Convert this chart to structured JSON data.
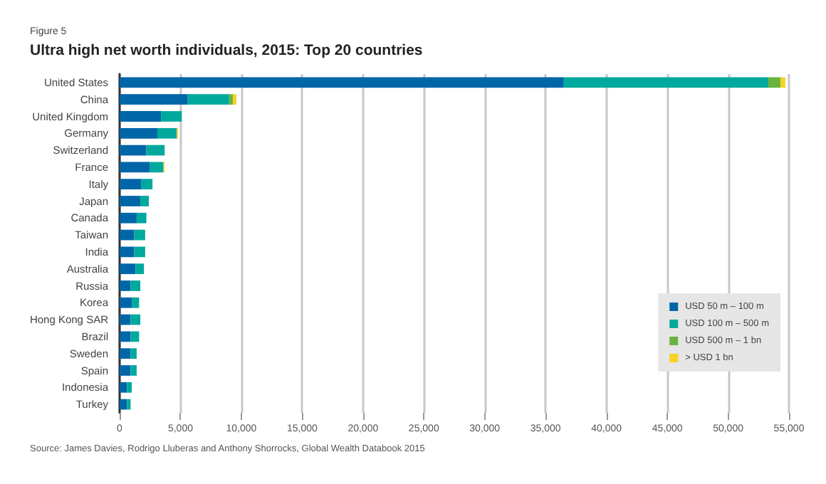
{
  "chart_data": {
    "type": "bar",
    "orientation": "horizontal",
    "stacked": true,
    "subtitle": "Figure 5",
    "title": "Ultra high net worth individuals, 2015: Top 20 countries",
    "annotations": [
      "Source: James Davies, Rodrigo Lluberas and Anthony Shorrocks, Global Wealth Databook 2015"
    ],
    "categories": [
      "United States",
      "China",
      "United Kingdom",
      "Germany",
      "Switzerland",
      "France",
      "Italy",
      "Japan",
      "Canada",
      "Taiwan",
      "India",
      "Australia",
      "Russia",
      "Korea",
      "Hong Kong SAR",
      "Brazil",
      "Sweden",
      "Spain",
      "Indonesia",
      "Turkey"
    ],
    "series": [
      {
        "name": "USD 50 m – 100 m",
        "color": "#0066a8",
        "values": [
          36500,
          5600,
          3400,
          3100,
          2200,
          2500,
          1800,
          1700,
          1400,
          1200,
          1200,
          1300,
          900,
          1000,
          900,
          900,
          900,
          900,
          600,
          600
        ]
      },
      {
        "name": "USD 100 m – 500 m",
        "color": "#00a99d",
        "values": [
          16800,
          3400,
          1700,
          1600,
          1500,
          1100,
          900,
          700,
          800,
          900,
          900,
          700,
          800,
          600,
          800,
          700,
          500,
          500,
          400,
          300
        ]
      },
      {
        "name": "USD 500 m – 1 bn",
        "color": "#6ab43e",
        "values": [
          1000,
          300,
          null,
          null,
          null,
          null,
          null,
          null,
          null,
          null,
          null,
          null,
          null,
          null,
          null,
          null,
          null,
          null,
          null,
          null
        ]
      },
      {
        "name": "> USD 1 bn",
        "color": "#f5d327",
        "values": [
          400,
          300,
          null,
          100,
          null,
          100,
          null,
          null,
          null,
          null,
          null,
          null,
          null,
          null,
          null,
          null,
          null,
          null,
          null,
          null
        ]
      }
    ],
    "xlim": [
      0,
      55000
    ],
    "xticks": [
      0,
      {
        "value": 5000,
        "label": "5,000"
      },
      {
        "value": 10000,
        "label": "10,000"
      },
      {
        "value": 15000,
        "label": "15,000"
      },
      {
        "value": 20000,
        "label": "20,000"
      },
      {
        "value": 25000,
        "label": "25,000"
      },
      {
        "value": 30000,
        "label": "30,000"
      },
      {
        "value": 35000,
        "label": "35,000"
      },
      {
        "value": 40000,
        "label": "40,000"
      },
      {
        "value": 45000,
        "label": "45,000"
      },
      {
        "value": 50000,
        "label": "50,000"
      },
      {
        "value": 55000,
        "label": "55,000"
      }
    ],
    "grid": "x",
    "legend": "right"
  }
}
